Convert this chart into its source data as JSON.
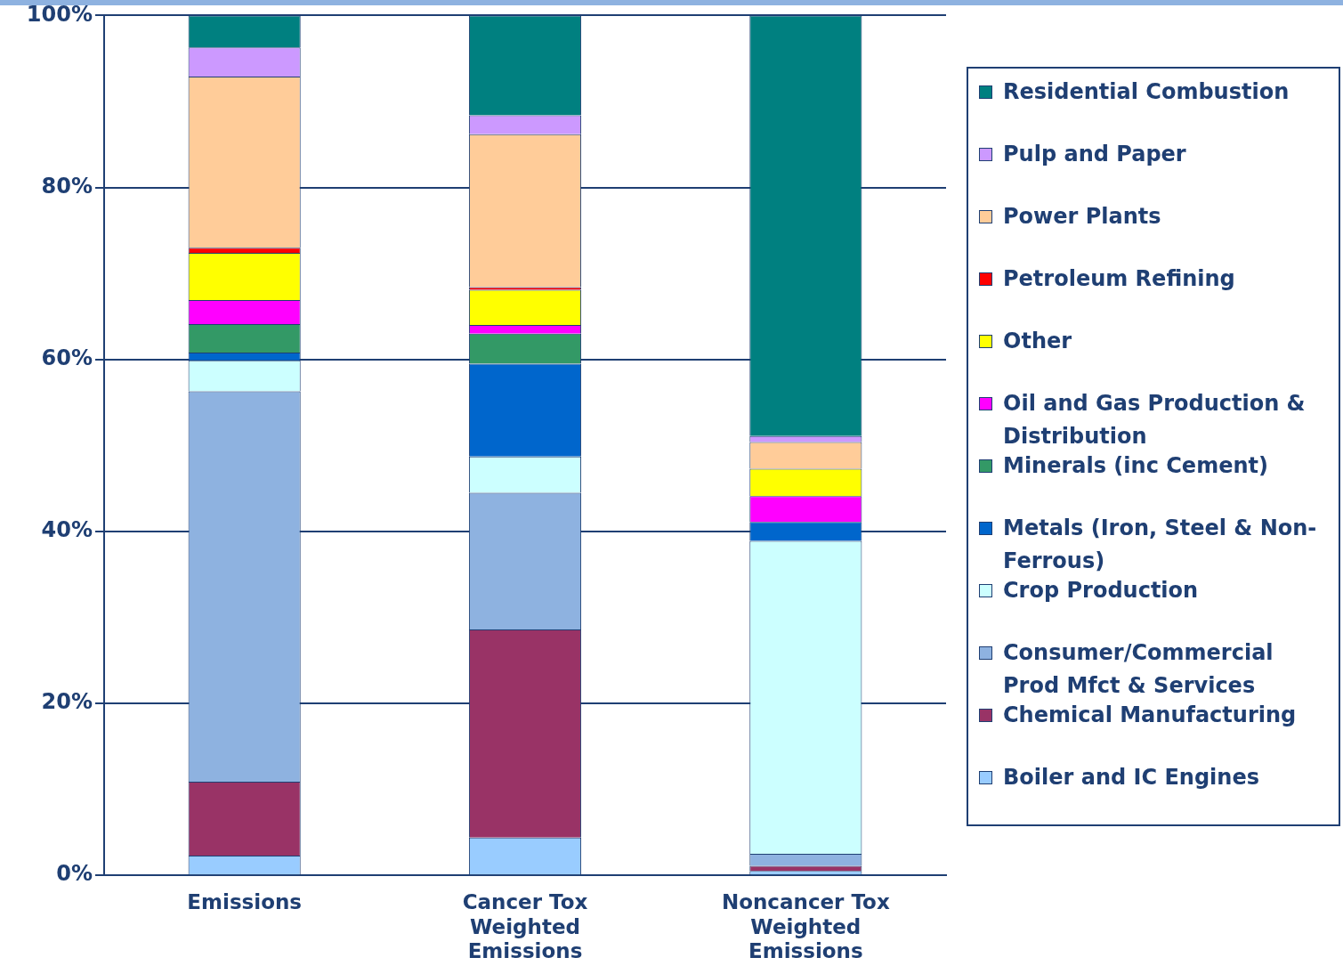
{
  "chart_data": {
    "type": "bar",
    "stacked": true,
    "categories": [
      "Emissions",
      "Cancer Tox Weighted Emissions",
      "Noncancer Tox Weighted Emissions"
    ],
    "series": [
      {
        "name": "Boiler and IC Engines",
        "color": "#99ccff",
        "values": [
          2.3,
          4.4,
          0.5
        ]
      },
      {
        "name": "Chemical Manufacturing",
        "color": "#993366",
        "values": [
          8.6,
          24.2,
          0.6
        ]
      },
      {
        "name": "Consumer/Commercial Prod Mfct & Services",
        "color": "#8eb2e0",
        "values": [
          45.4,
          15.9,
          1.4
        ]
      },
      {
        "name": "Crop Production",
        "color": "#ccffff",
        "values": [
          3.6,
          4.2,
          36.4
        ]
      },
      {
        "name": "Metals (Iron, Steel & Non-Ferrous)",
        "color": "#0066cc",
        "values": [
          0.9,
          10.8,
          2.2
        ]
      },
      {
        "name": "Minerals (inc Cement)",
        "color": "#339966",
        "values": [
          3.3,
          3.5,
          null
        ]
      },
      {
        "name": "Oil and Gas Production & Distribution",
        "color": "#ff00ff",
        "values": [
          2.8,
          1.0,
          3.0
        ]
      },
      {
        "name": "Other",
        "color": "#ffff00",
        "values": [
          5.5,
          4.1,
          3.2
        ]
      },
      {
        "name": "Petroleum Refining",
        "color": "#ff0000",
        "values": [
          0.6,
          0.3,
          null
        ]
      },
      {
        "name": "Power Plants",
        "color": "#ffcc99",
        "values": [
          19.9,
          17.8,
          3.1
        ]
      },
      {
        "name": "Pulp and Paper",
        "color": "#cc99ff",
        "values": [
          3.4,
          2.2,
          0.7
        ]
      },
      {
        "name": "Residential Combustion",
        "color": "#008080",
        "values": [
          3.7,
          11.6,
          48.9
        ]
      }
    ],
    "ylim": [
      0,
      100
    ],
    "yticks": [
      {
        "value": 0,
        "label": "0%"
      },
      {
        "value": 20,
        "label": "20%"
      },
      {
        "value": 40,
        "label": "40%"
      },
      {
        "value": 60,
        "label": "60%"
      },
      {
        "value": 80,
        "label": "80%"
      },
      {
        "value": 100,
        "label": "100%"
      }
    ],
    "grid": "y",
    "legend": "right"
  }
}
